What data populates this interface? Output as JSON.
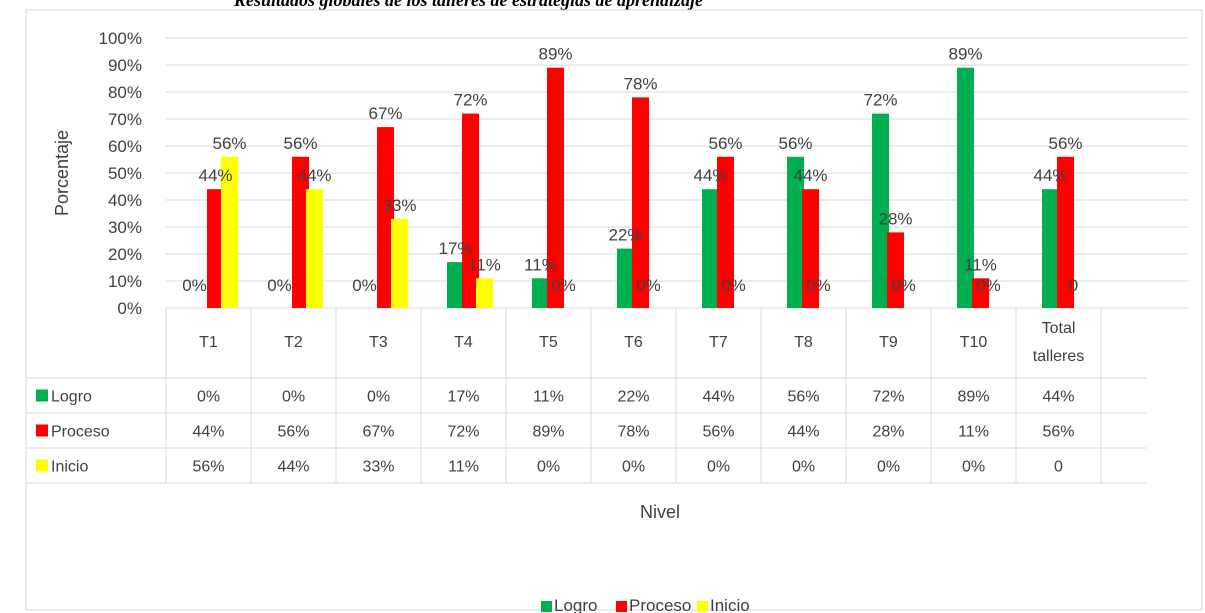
{
  "caption": "Resultados globales de los talleres de estrategias de aprendizaje",
  "colors": {
    "logro": "#00B050",
    "proceso": "#FF0000",
    "inicio": "#FFFF00"
  },
  "chart_data": {
    "type": "bar",
    "xlabel": "Nivel",
    "ylabel": "Porcentaje",
    "ylim": [
      0,
      100
    ],
    "y_ticks": [
      "0%",
      "10%",
      "20%",
      "30%",
      "40%",
      "50%",
      "60%",
      "70%",
      "80%",
      "90%",
      "100%"
    ],
    "grid": true,
    "legend_position": "bottom",
    "categories": [
      "T1",
      "T2",
      "T3",
      "T4",
      "T5",
      "T6",
      "T7",
      "T8",
      "T9",
      "T10",
      "Total talleres"
    ],
    "series": [
      {
        "name": "Logro",
        "color": "#00B050",
        "values": [
          0,
          0,
          0,
          17,
          11,
          22,
          44,
          56,
          72,
          89,
          44
        ],
        "labels": [
          "0%",
          "0%",
          "0%",
          "17%",
          "11%",
          "22%",
          "44%",
          "56%",
          "72%",
          "89%",
          "44%"
        ]
      },
      {
        "name": "Proceso",
        "color": "#FF0000",
        "values": [
          44,
          56,
          67,
          72,
          89,
          78,
          56,
          44,
          28,
          11,
          56
        ],
        "labels": [
          "44%",
          "56%",
          "67%",
          "72%",
          "89%",
          "78%",
          "56%",
          "44%",
          "28%",
          "11%",
          "56%"
        ]
      },
      {
        "name": "Inicio",
        "color": "#FFFF00",
        "values": [
          56,
          44,
          33,
          11,
          0,
          0,
          0,
          0,
          0,
          0,
          0
        ],
        "labels": [
          "56%",
          "44%",
          "33%",
          "11%",
          "0%",
          "0%",
          "0%",
          "0%",
          "0%",
          "0%",
          "0"
        ]
      }
    ]
  }
}
